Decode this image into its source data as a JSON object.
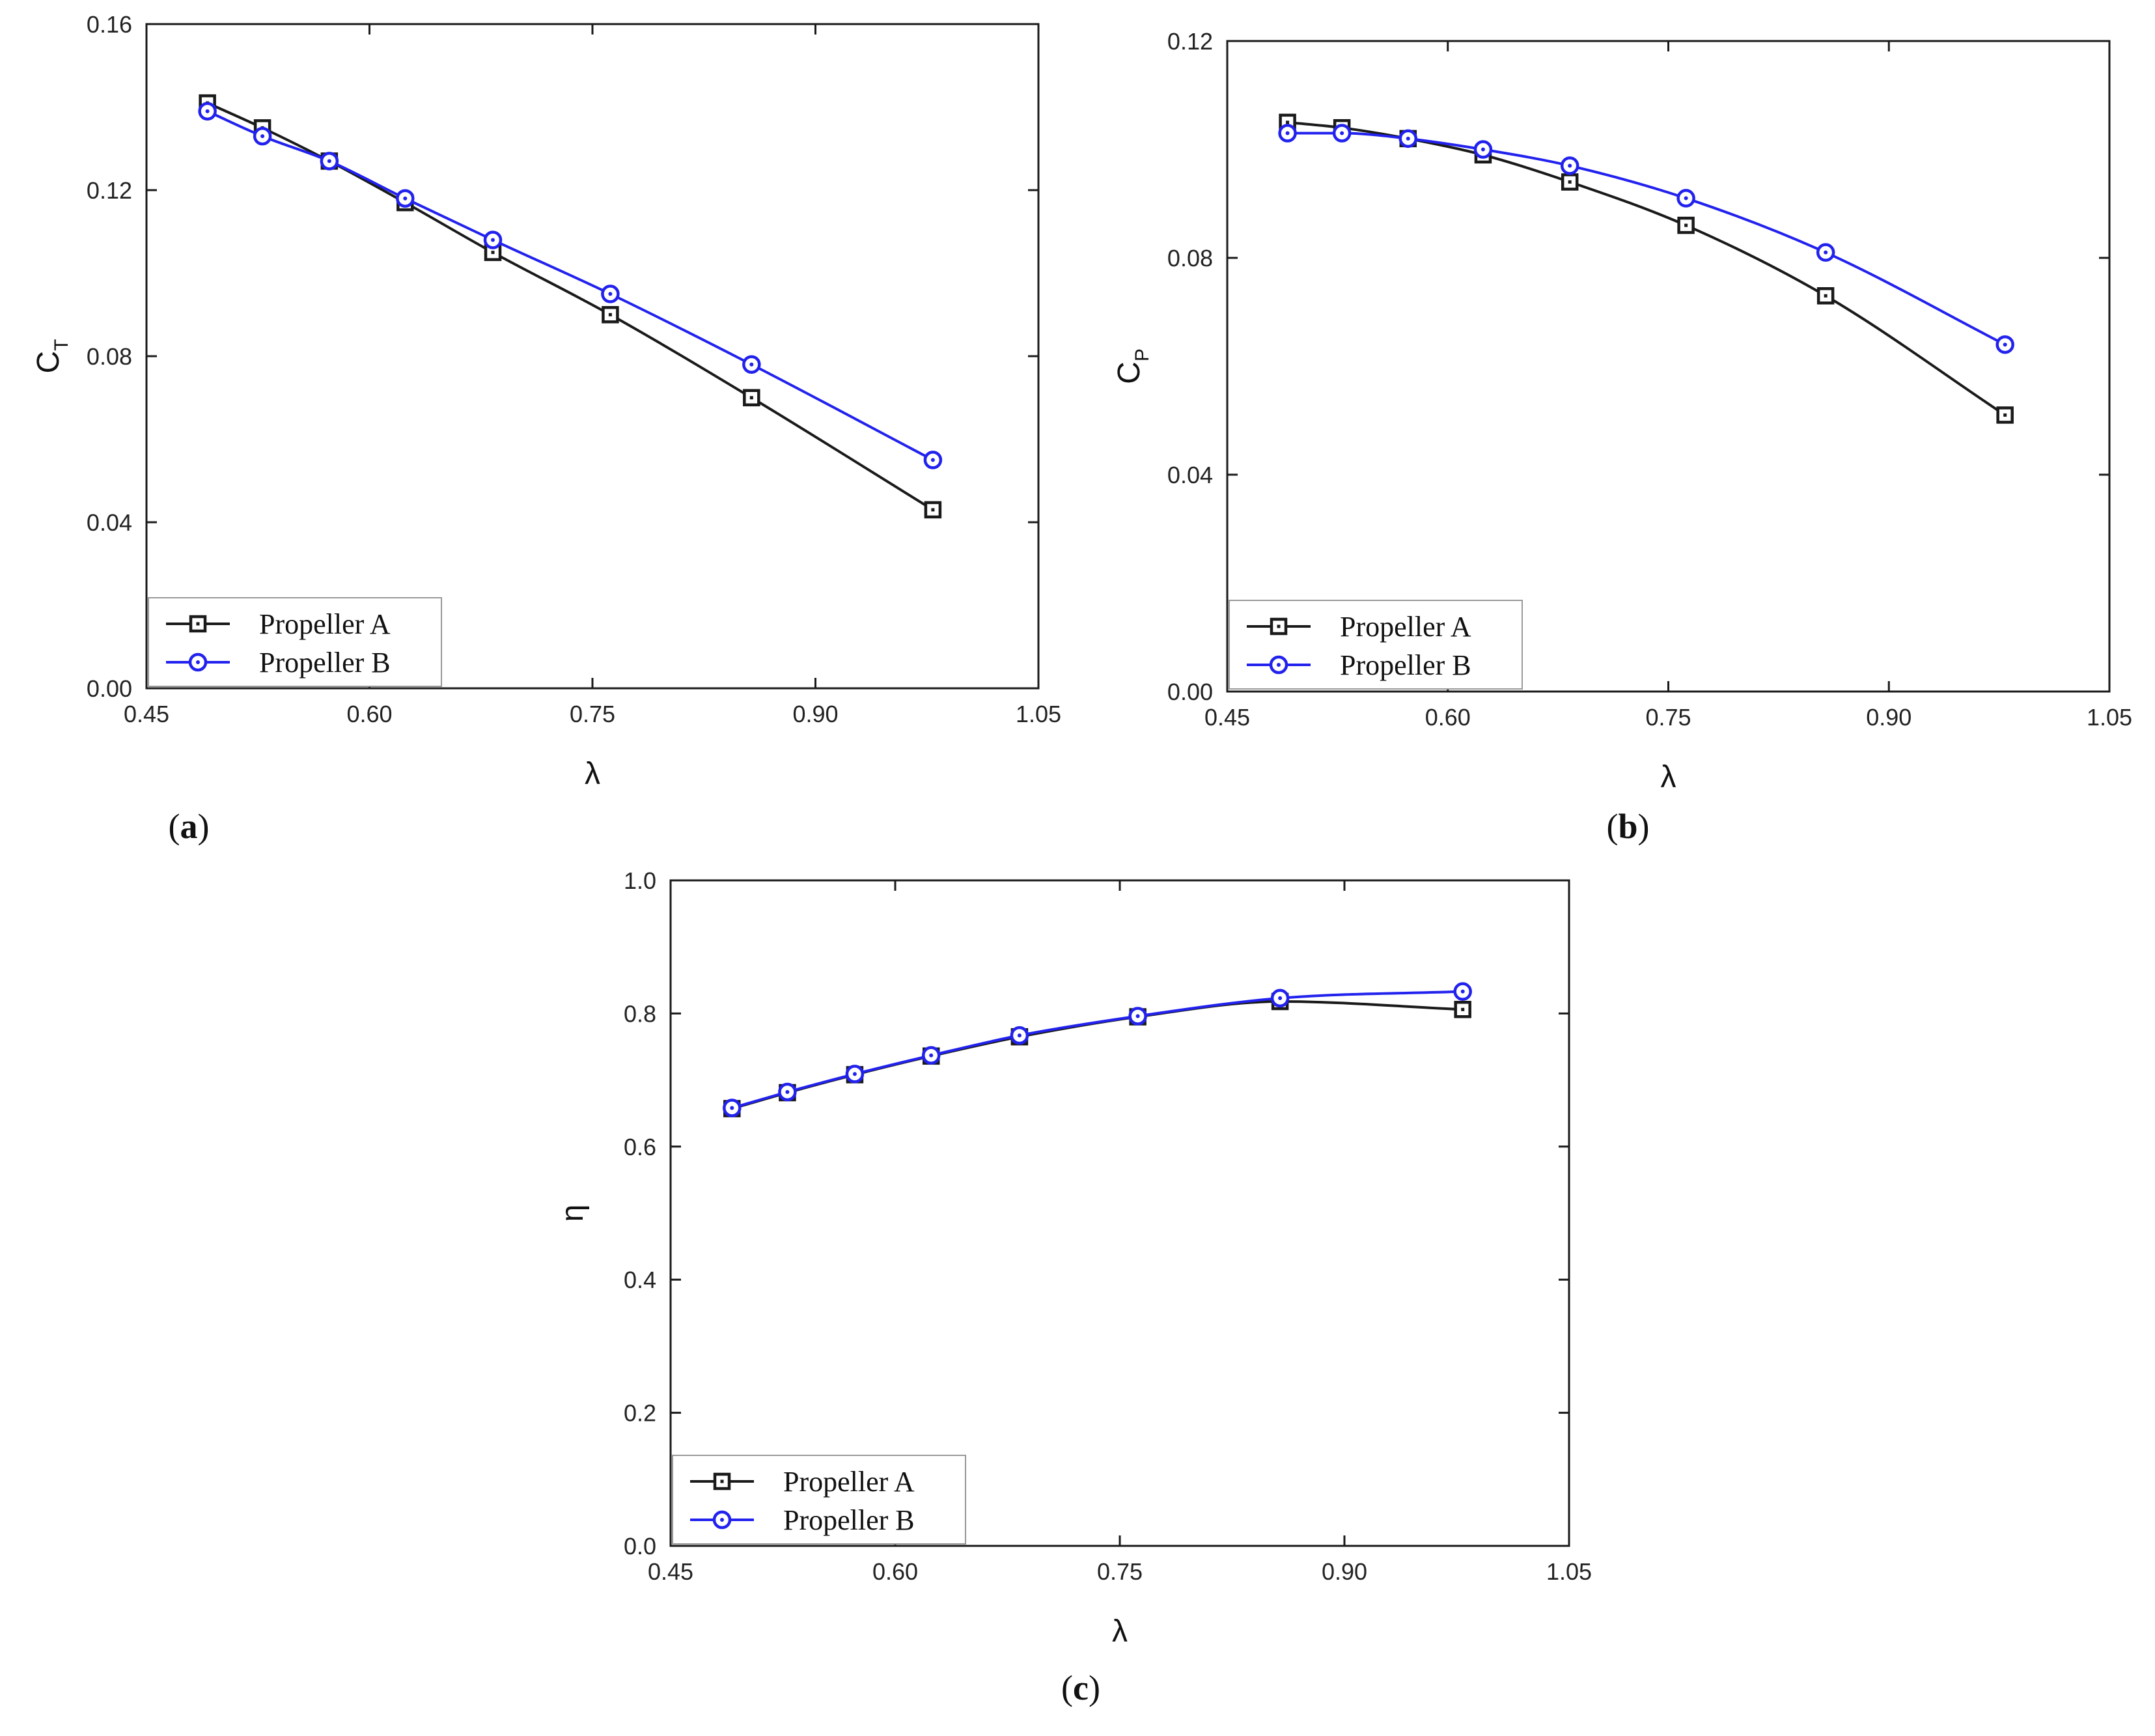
{
  "colors": {
    "series_a": "#1a1a1a",
    "series_b": "#2222ee",
    "axis": "#1a1a1a",
    "legend_border": "#999999"
  },
  "chart_data": [
    {
      "type": "line",
      "panel": "a",
      "caption_letter": "a",
      "xlabel": "λ",
      "ylabel": "C",
      "ylabel_sub": "T",
      "xlim": [
        0.45,
        1.05
      ],
      "ylim": [
        0.0,
        0.16
      ],
      "xticks": [
        "0.45",
        "0.60",
        "0.75",
        "0.90",
        "1.05"
      ],
      "yticks": [
        "0.00",
        "0.04",
        "0.08",
        "0.12",
        "0.16"
      ],
      "grid": false,
      "legend_position": "bottom-left",
      "series": [
        {
          "name": "Propeller A",
          "marker": "square",
          "x": [
            0.491,
            0.528,
            0.573,
            0.624,
            0.683,
            0.762,
            0.857,
            0.979
          ],
          "y": [
            0.141,
            0.135,
            0.127,
            0.117,
            0.105,
            0.09,
            0.07,
            0.043
          ]
        },
        {
          "name": "Propeller B",
          "marker": "circle",
          "x": [
            0.491,
            0.528,
            0.573,
            0.624,
            0.683,
            0.762,
            0.857,
            0.979
          ],
          "y": [
            0.139,
            0.133,
            0.127,
            0.118,
            0.108,
            0.095,
            0.078,
            0.055
          ]
        }
      ]
    },
    {
      "type": "line",
      "panel": "b",
      "caption_letter": "b",
      "xlabel": "λ",
      "ylabel": "C",
      "ylabel_sub": "P",
      "xlim": [
        0.45,
        1.05
      ],
      "ylim": [
        0.0,
        0.12
      ],
      "xticks": [
        "0.45",
        "0.60",
        "0.75",
        "0.90",
        "1.05"
      ],
      "yticks": [
        "0.00",
        "0.04",
        "0.08",
        "0.12"
      ],
      "grid": false,
      "legend_position": "bottom-left",
      "series": [
        {
          "name": "Propeller A",
          "marker": "square",
          "x": [
            0.491,
            0.528,
            0.573,
            0.624,
            0.683,
            0.762,
            0.857,
            0.979
          ],
          "y": [
            0.105,
            0.104,
            0.102,
            0.099,
            0.094,
            0.086,
            0.073,
            0.051
          ]
        },
        {
          "name": "Propeller B",
          "marker": "circle",
          "x": [
            0.491,
            0.528,
            0.573,
            0.624,
            0.683,
            0.762,
            0.857,
            0.979
          ],
          "y": [
            0.103,
            0.103,
            0.102,
            0.1,
            0.097,
            0.091,
            0.081,
            0.064
          ]
        }
      ]
    },
    {
      "type": "line",
      "panel": "c",
      "caption_letter": "c",
      "xlabel": "λ",
      "ylabel": "η",
      "ylabel_sub": "",
      "xlim": [
        0.45,
        1.05
      ],
      "ylim": [
        0.0,
        1.0
      ],
      "xticks": [
        "0.45",
        "0.60",
        "0.75",
        "0.90",
        "1.05"
      ],
      "yticks": [
        "0.0",
        "0.2",
        "0.4",
        "0.6",
        "0.8",
        "1.0"
      ],
      "grid": false,
      "legend_position": "bottom-left",
      "series": [
        {
          "name": "Propeller A",
          "marker": "square",
          "x": [
            0.491,
            0.528,
            0.573,
            0.624,
            0.683,
            0.762,
            0.857,
            0.979
          ],
          "y": [
            0.657,
            0.681,
            0.708,
            0.736,
            0.765,
            0.795,
            0.818,
            0.806
          ]
        },
        {
          "name": "Propeller B",
          "marker": "circle",
          "x": [
            0.491,
            0.528,
            0.573,
            0.624,
            0.683,
            0.762,
            0.857,
            0.979
          ],
          "y": [
            0.658,
            0.682,
            0.709,
            0.737,
            0.767,
            0.796,
            0.823,
            0.833
          ]
        }
      ]
    }
  ]
}
